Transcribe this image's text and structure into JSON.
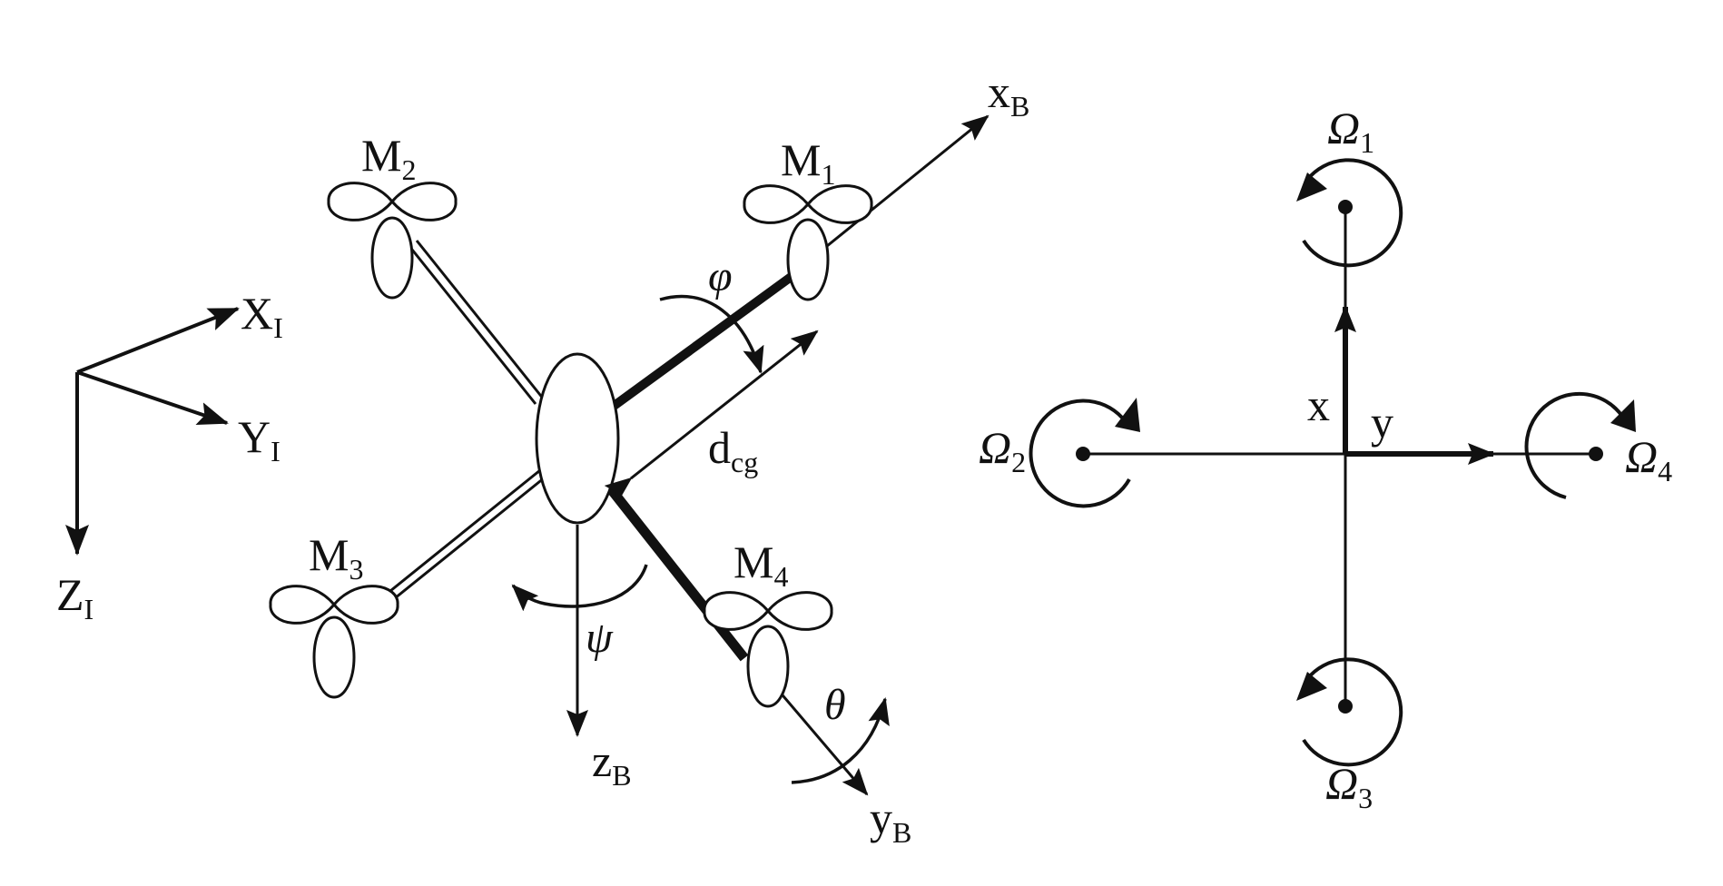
{
  "inertial_frame": {
    "x": {
      "main": "X",
      "sub": "I"
    },
    "y": {
      "main": "Y",
      "sub": "I"
    },
    "z": {
      "main": "Z",
      "sub": "I"
    }
  },
  "body_frame": {
    "x": {
      "main": "x",
      "sub": "B"
    },
    "y": {
      "main": "y",
      "sub": "B"
    },
    "z": {
      "main": "z",
      "sub": "B"
    }
  },
  "motors": {
    "m1": {
      "main": "M",
      "sub": "1"
    },
    "m2": {
      "main": "M",
      "sub": "2"
    },
    "m3": {
      "main": "M",
      "sub": "3"
    },
    "m4": {
      "main": "M",
      "sub": "4"
    }
  },
  "angles": {
    "roll": "φ",
    "pitch": "θ",
    "yaw": "ψ"
  },
  "distance": {
    "main": "d",
    "sub": "cg"
  },
  "top_view": {
    "x_label": "x",
    "y_label": "y",
    "rotors": {
      "r1": {
        "main": "Ω",
        "sub": "1"
      },
      "r2": {
        "main": "Ω",
        "sub": "2"
      },
      "r3": {
        "main": "Ω",
        "sub": "3"
      },
      "r4": {
        "main": "Ω",
        "sub": "4"
      }
    }
  }
}
